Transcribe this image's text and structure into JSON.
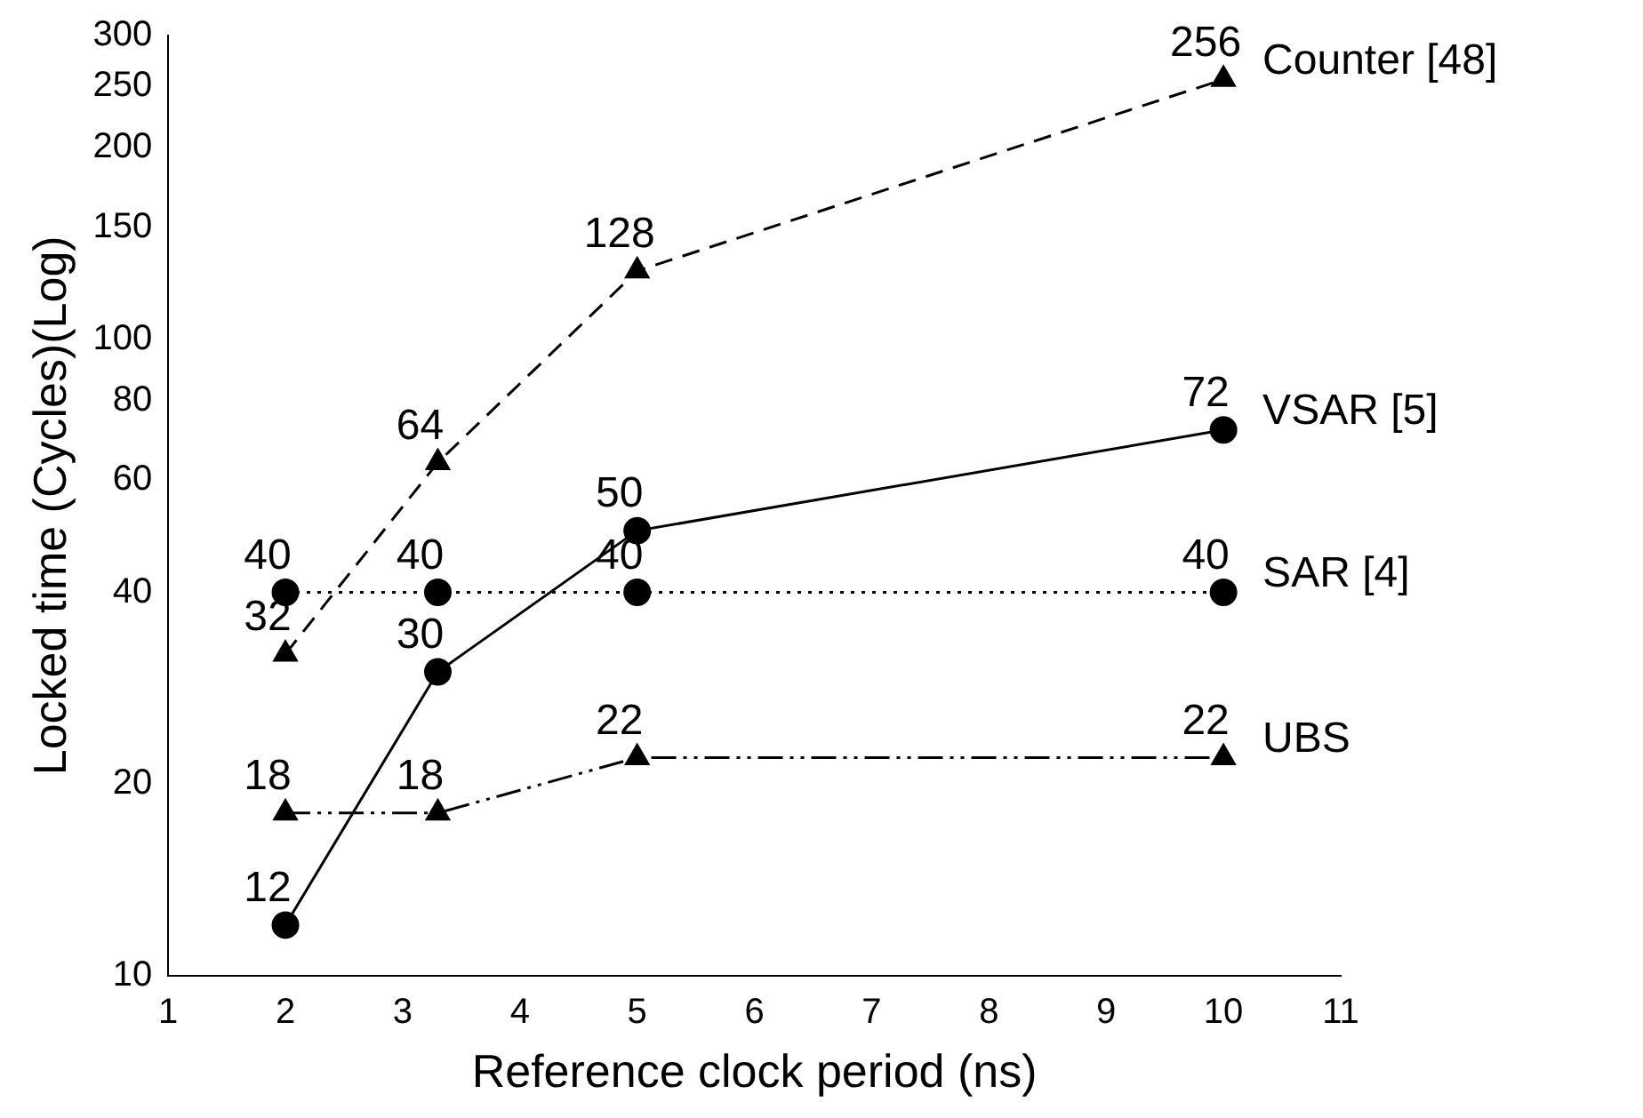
{
  "chart_data": {
    "type": "line",
    "xlabel": "Reference clock period (ns)",
    "ylabel": "Locked time (Cycles)(Log)",
    "log": "y",
    "grid": false,
    "legend": false,
    "data_labels": true,
    "xlim": [
      1,
      11
    ],
    "xticks": [
      1,
      2,
      3,
      4,
      5,
      6,
      7,
      8,
      9,
      10,
      11
    ],
    "ylim": [
      10,
      300
    ],
    "yticks": [
      10,
      20,
      40,
      60,
      80,
      100,
      150,
      200,
      250,
      300
    ],
    "x": [
      2,
      3.3,
      5,
      10
    ],
    "series": [
      {
        "name": "Counter [48]",
        "color": "#000000",
        "values": [
          32,
          64,
          128,
          256
        ],
        "marker": "triangle",
        "line_style": "dashed"
      },
      {
        "name": "VSAR [5]",
        "color": "#000000",
        "values": [
          12,
          30,
          50,
          72
        ],
        "marker": "circle",
        "line_style": "solid"
      },
      {
        "name": "SAR [4]",
        "color": "#000000",
        "values": [
          40,
          40,
          40,
          40
        ],
        "marker": "circle",
        "line_style": "dotted"
      },
      {
        "name": "UBS",
        "color": "#000000",
        "values": [
          18,
          18,
          22,
          22
        ],
        "marker": "triangle",
        "line_style": "dashdot"
      }
    ]
  }
}
